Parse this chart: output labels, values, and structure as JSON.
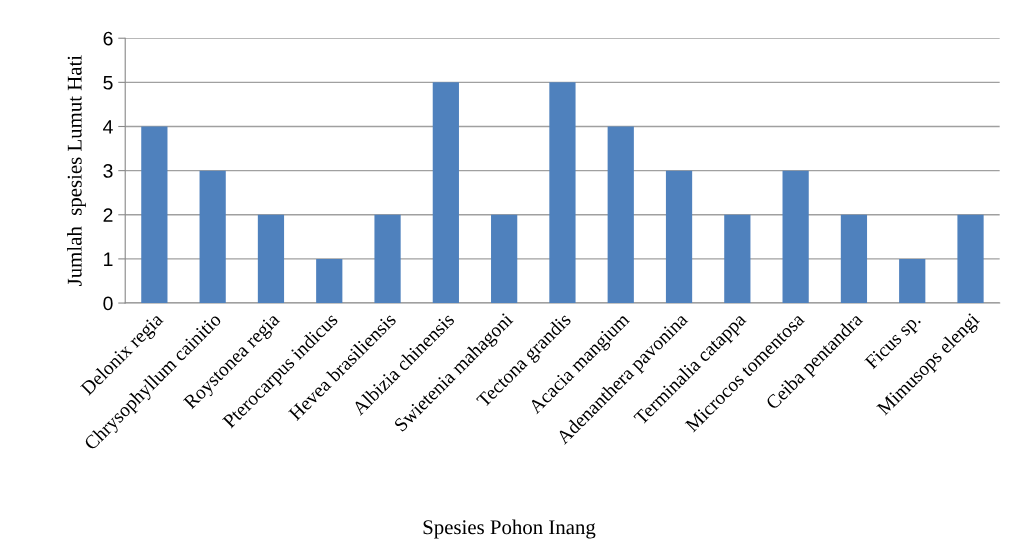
{
  "chart_data": {
    "type": "bar",
    "categories": [
      "Delonix regia",
      "Chrysophyllum cainitio",
      "Roystonea regia",
      "Pterocarpus indicus",
      "Hevea brasiliensis",
      "Albizia chinensis",
      "Swietenia mahagoni",
      "Tectona grandis",
      "Acacia mangium",
      "Adenanthera pavonina",
      "Terminalia catappa",
      "Microcos tomentosa",
      "Ceiba pentandra",
      "Ficus sp.",
      "Mimusops elengi"
    ],
    "values": [
      4,
      3,
      2,
      1,
      2,
      5,
      2,
      5,
      4,
      3,
      2,
      3,
      2,
      1,
      2
    ],
    "color": "#4f81bd",
    "xlabel": "Spesies Pohon Inang",
    "ylabel": "Jumlah  spesies Lumut Hati",
    "ylim": [
      0,
      6
    ],
    "yticks": [
      0,
      1,
      2,
      3,
      4,
      5,
      6
    ],
    "grid": "y",
    "legend": false
  }
}
